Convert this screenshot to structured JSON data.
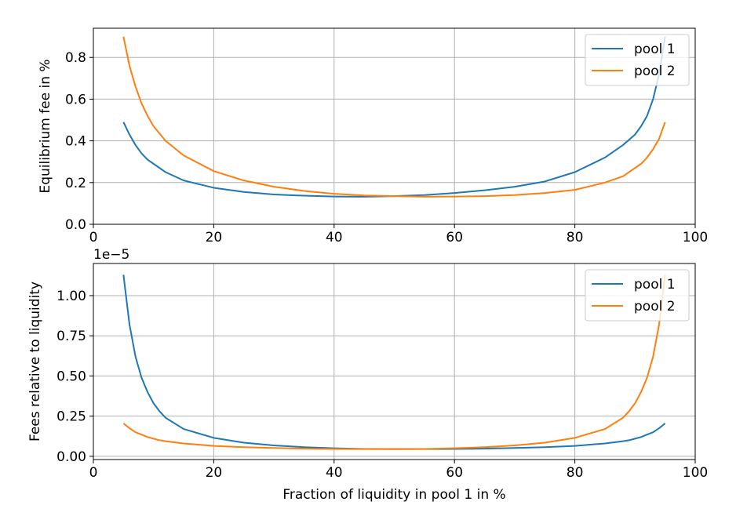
{
  "chart_data": [
    {
      "type": "line",
      "xlabel": "",
      "ylabel": "Equilibrium fee in %",
      "xlim": [
        0,
        100
      ],
      "ylim": [
        0,
        0.94
      ],
      "xticks": [
        "0",
        "20",
        "40",
        "60",
        "80",
        "100"
      ],
      "yticks": [
        "0.0",
        "0.2",
        "0.4",
        "0.6",
        "0.8"
      ],
      "grid": true,
      "legend_position": "top-right",
      "x": [
        5,
        6,
        7,
        8,
        9,
        10,
        12,
        15,
        20,
        25,
        30,
        35,
        40,
        45,
        50,
        55,
        60,
        65,
        70,
        75,
        80,
        85,
        88,
        90,
        91,
        92,
        93,
        94,
        95
      ],
      "series": [
        {
          "name": "pool 1",
          "color": "#1f77b4",
          "values": [
            0.49,
            0.43,
            0.38,
            0.34,
            0.31,
            0.29,
            0.25,
            0.21,
            0.175,
            0.155,
            0.143,
            0.137,
            0.133,
            0.132,
            0.135,
            0.14,
            0.15,
            0.163,
            0.18,
            0.205,
            0.25,
            0.32,
            0.38,
            0.43,
            0.47,
            0.52,
            0.6,
            0.72,
            0.9
          ]
        },
        {
          "name": "pool 2",
          "color": "#ff7f0e",
          "values": [
            0.9,
            0.76,
            0.66,
            0.58,
            0.52,
            0.47,
            0.4,
            0.33,
            0.255,
            0.21,
            0.18,
            0.16,
            0.146,
            0.138,
            0.135,
            0.132,
            0.133,
            0.135,
            0.14,
            0.15,
            0.165,
            0.2,
            0.23,
            0.27,
            0.29,
            0.32,
            0.36,
            0.41,
            0.49
          ]
        }
      ]
    },
    {
      "type": "line",
      "xlabel": "Fraction of liquidity in pool 1 in %",
      "ylabel": "Fees relative to liquidity",
      "offset_label": "1e−5",
      "xlim": [
        0,
        100
      ],
      "ylim": [
        -0.02,
        1.2
      ],
      "xticks": [
        "0",
        "20",
        "40",
        "60",
        "80",
        "100"
      ],
      "yticks": [
        "0.00",
        "0.25",
        "0.50",
        "0.75",
        "1.00"
      ],
      "grid": true,
      "legend_position": "top-right",
      "x": [
        5,
        6,
        7,
        8,
        9,
        10,
        11,
        12,
        15,
        20,
        25,
        30,
        35,
        40,
        45,
        50,
        55,
        60,
        65,
        70,
        75,
        80,
        85,
        88,
        89,
        90,
        91,
        92,
        93,
        94,
        95
      ],
      "series": [
        {
          "name": "pool 1",
          "color": "#1f77b4",
          "values": [
            1.13,
            0.82,
            0.62,
            0.49,
            0.4,
            0.33,
            0.28,
            0.24,
            0.17,
            0.115,
            0.085,
            0.068,
            0.057,
            0.05,
            0.046,
            0.045,
            0.045,
            0.046,
            0.048,
            0.052,
            0.057,
            0.065,
            0.08,
            0.094,
            0.1,
            0.11,
            0.12,
            0.135,
            0.15,
            0.175,
            0.205
          ]
        },
        {
          "name": "pool 2",
          "color": "#ff7f0e",
          "values": [
            0.205,
            0.175,
            0.15,
            0.135,
            0.12,
            0.11,
            0.1,
            0.094,
            0.08,
            0.065,
            0.057,
            0.052,
            0.048,
            0.046,
            0.045,
            0.045,
            0.046,
            0.05,
            0.057,
            0.068,
            0.085,
            0.115,
            0.17,
            0.24,
            0.28,
            0.33,
            0.4,
            0.49,
            0.62,
            0.82,
            1.13
          ]
        }
      ]
    }
  ]
}
